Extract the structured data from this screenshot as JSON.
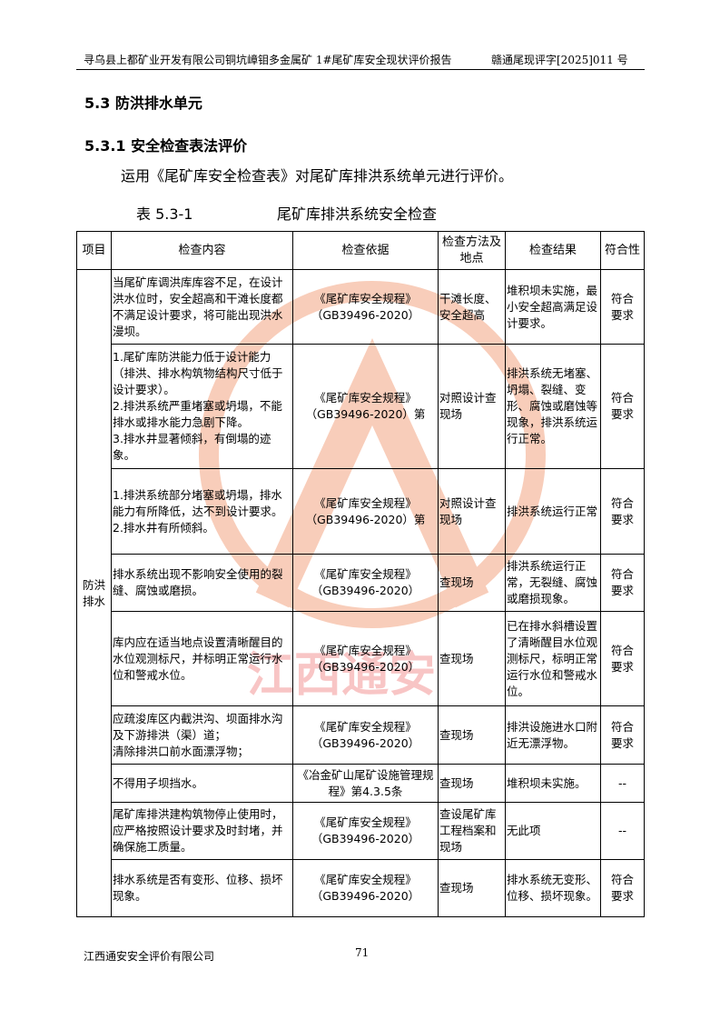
{
  "header": {
    "title": "寻乌县上都矿业开发有限公司铜坑嶂钼多金属矿 1#尾矿库安全现状评价报告",
    "doc_no": "赣通尾现评字[2025]011 号"
  },
  "section": {
    "h1": "5.3 防洪排水单元",
    "h2": "5.3.1 安全检查表法评价",
    "para": "运用《尾矿库安全检查表》对尾矿库排洪系统单元进行评价。",
    "caption_no": "表 5.3-1",
    "caption_title": "尾矿库排洪系统安全检查"
  },
  "table": {
    "headers": [
      "项目",
      "检查内容",
      "检查依据",
      "检查方法及地点",
      "检查结果",
      "符合性"
    ],
    "item": "防洪排水",
    "rows": [
      {
        "content": "当尾矿库调洪库库容不足，在设计洪水位时，安全超高和干滩长度都不满足设计要求，将可能出现洪水漫坝。",
        "basis": "《尾矿库安全规程》（GB39496-2020）",
        "method": "干滩长度、安全超高",
        "result": "堆积坝未实施，最小安全超高满足设计要求。",
        "conform": "符合要求"
      },
      {
        "content": "1.尾矿库防洪能力低于设计能力（排洪、排水构筑物结构尺寸低于设计要求）。\n2.排洪系统严重堵塞或坍塌，不能排水或排水能力急剧下降。\n3.排水井显著倾斜，有倒塌的迹象。",
        "basis": "《尾矿库安全规程》（GB39496-2020）第",
        "method": "对照设计查现场",
        "result": "排洪系统无堵塞、坍塌、裂缝、变形、腐蚀或磨蚀等现象，排洪系统运行正常。",
        "conform": "符合要求"
      },
      {
        "content": "1.排洪系统部分堵塞或坍塌，排水能力有所降低，达不到设计要求。\n2.排水井有所倾斜。",
        "basis": "《尾矿库安全规程》（GB39496-2020）第",
        "method": "对照设计查现场",
        "result": "排洪系统运行正常",
        "conform": "符合要求"
      },
      {
        "content": "排水系统出现不影响安全使用的裂缝、腐蚀或磨损。",
        "basis": "《尾矿库安全规程》（GB39496-2020）",
        "method": "查现场",
        "result": "排洪系统运行正常，无裂缝、腐蚀或磨损现象。",
        "conform": "符合要求"
      },
      {
        "content": "库内应在适当地点设置清晰醒目的水位观测标尺，并标明正常运行水位和警戒水位。",
        "basis": "《尾矿库安全规程》（GB39496-2020）",
        "method": "查现场",
        "result": "已在排水斜槽设置了清晰醒目水位观测标尺，标明正常运行水位和警戒水位。",
        "conform": "符合要求"
      },
      {
        "content": "应疏浚库区内截洪沟、坝面排水沟及下游排洪（渠）道；\n清除排洪口前水面漂浮物；",
        "basis": "《尾矿库安全规程》（GB39496-2020）",
        "method": "查现场",
        "result": "排洪设施进水口附近无漂浮物。",
        "conform": "符合要求"
      },
      {
        "content": "不得用子坝挡水。",
        "basis": "《冶金矿山尾矿设施管理规程》第4.3.5条",
        "method": "查现场",
        "result": "堆积坝未实施。",
        "conform": "--"
      },
      {
        "content": "尾矿库排洪建构筑物停止使用时，应严格按照设计要求及时封堵，并确保施工质量。",
        "basis": "《尾矿库安全规程》（GB39496-2020）",
        "method": "查设尾矿库工程档案和现场",
        "result": "无此项",
        "conform": "--"
      },
      {
        "content": "排水系统是否有变形、位移、损坏现象。",
        "basis": "《尾矿库安全规程》（GB39496-2020）",
        "method": "查现场",
        "result": "排水系统无变形、位移、损坏现象。",
        "conform": "符合要求"
      }
    ]
  },
  "watermark": {
    "text": "江西通安",
    "color_ring": "#f4a582",
    "color_text": "#f08080",
    "color_blue": "#9cc8e8"
  },
  "footer": {
    "company": "江西通安安全评价有限公司",
    "page": "71"
  }
}
